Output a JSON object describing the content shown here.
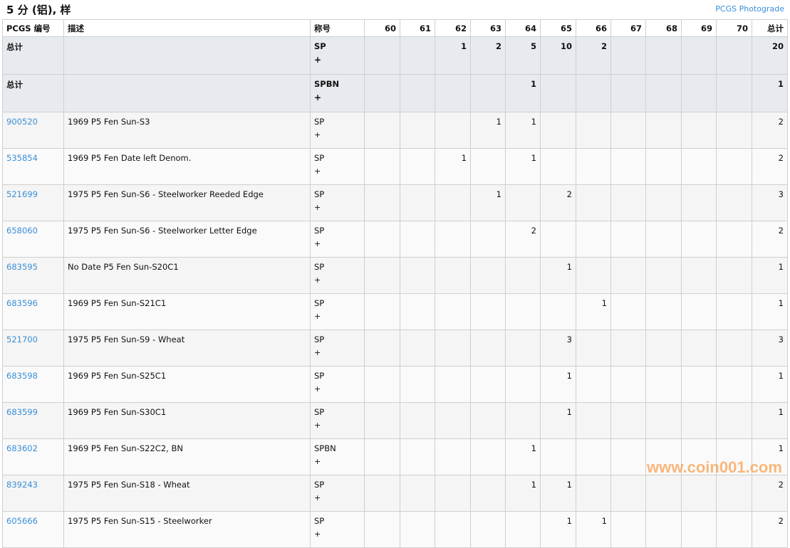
{
  "title": "5 分 (铝), 样",
  "photograde_link": "PCGS Photograde",
  "headers": {
    "pcgs": "PCGS 编号",
    "desc": "描述",
    "designation": "称号",
    "grades": [
      "60",
      "61",
      "62",
      "63",
      "64",
      "65",
      "66",
      "67",
      "68",
      "69",
      "70"
    ],
    "total": "总计"
  },
  "totals": [
    {
      "label": "总计",
      "designation": "SP",
      "plus": "+",
      "counts": [
        "",
        "",
        "1",
        "2",
        "5",
        "10",
        "2",
        "",
        "",
        "",
        ""
      ],
      "total": "20"
    },
    {
      "label": "总计",
      "designation": "SPBN",
      "plus": "+",
      "counts": [
        "",
        "",
        "",
        "",
        "1",
        "",
        "",
        "",
        "",
        "",
        ""
      ],
      "total": "1"
    }
  ],
  "rows": [
    {
      "pcgs": "900520",
      "desc": "1969 P5 Fen Sun-S3",
      "designation": "SP",
      "plus": "+",
      "counts": [
        "",
        "",
        "",
        "1",
        "1",
        "",
        "",
        "",
        "",
        "",
        ""
      ],
      "total": "2"
    },
    {
      "pcgs": "535854",
      "desc": "1969 P5 Fen Date left Denom.",
      "designation": "SP",
      "plus": "+",
      "counts": [
        "",
        "",
        "1",
        "",
        "1",
        "",
        "",
        "",
        "",
        "",
        ""
      ],
      "total": "2"
    },
    {
      "pcgs": "521699",
      "desc": "1975 P5 Fen Sun-S6 - Steelworker Reeded Edge",
      "designation": "SP",
      "plus": "+",
      "counts": [
        "",
        "",
        "",
        "1",
        "",
        "2",
        "",
        "",
        "",
        "",
        ""
      ],
      "total": "3"
    },
    {
      "pcgs": "658060",
      "desc": "1975 P5 Fen Sun-S6 - Steelworker Letter Edge",
      "designation": "SP",
      "plus": "+",
      "counts": [
        "",
        "",
        "",
        "",
        "2",
        "",
        "",
        "",
        "",
        "",
        ""
      ],
      "total": "2"
    },
    {
      "pcgs": "683595",
      "desc": "No Date P5 Fen Sun-S20C1",
      "designation": "SP",
      "plus": "+",
      "counts": [
        "",
        "",
        "",
        "",
        "",
        "1",
        "",
        "",
        "",
        "",
        ""
      ],
      "total": "1"
    },
    {
      "pcgs": "683596",
      "desc": "1969 P5 Fen Sun-S21C1",
      "designation": "SP",
      "plus": "+",
      "counts": [
        "",
        "",
        "",
        "",
        "",
        "",
        "1",
        "",
        "",
        "",
        ""
      ],
      "total": "1"
    },
    {
      "pcgs": "521700",
      "desc": "1975 P5 Fen Sun-S9 - Wheat",
      "designation": "SP",
      "plus": "+",
      "counts": [
        "",
        "",
        "",
        "",
        "",
        "3",
        "",
        "",
        "",
        "",
        ""
      ],
      "total": "3"
    },
    {
      "pcgs": "683598",
      "desc": "1969 P5 Fen Sun-S25C1",
      "designation": "SP",
      "plus": "+",
      "counts": [
        "",
        "",
        "",
        "",
        "",
        "1",
        "",
        "",
        "",
        "",
        ""
      ],
      "total": "1"
    },
    {
      "pcgs": "683599",
      "desc": "1969 P5 Fen Sun-S30C1",
      "designation": "SP",
      "plus": "+",
      "counts": [
        "",
        "",
        "",
        "",
        "",
        "1",
        "",
        "",
        "",
        "",
        ""
      ],
      "total": "1"
    },
    {
      "pcgs": "683602",
      "desc": "1969 P5 Fen Sun-S22C2, BN",
      "designation": "SPBN",
      "plus": "+",
      "counts": [
        "",
        "",
        "",
        "",
        "1",
        "",
        "",
        "",
        "",
        "",
        ""
      ],
      "total": "1"
    },
    {
      "pcgs": "839243",
      "desc": "1975 P5 Fen Sun-S18 - Wheat",
      "designation": "SP",
      "plus": "+",
      "counts": [
        "",
        "",
        "",
        "",
        "1",
        "1",
        "",
        "",
        "",
        "",
        ""
      ],
      "total": "2"
    },
    {
      "pcgs": "605666",
      "desc": "1975 P5 Fen Sun-S15 - Steelworker",
      "designation": "SP",
      "plus": "+",
      "counts": [
        "",
        "",
        "",
        "",
        "",
        "1",
        "1",
        "",
        "",
        "",
        ""
      ],
      "total": "2"
    }
  ],
  "watermark": "www.coin001.com"
}
